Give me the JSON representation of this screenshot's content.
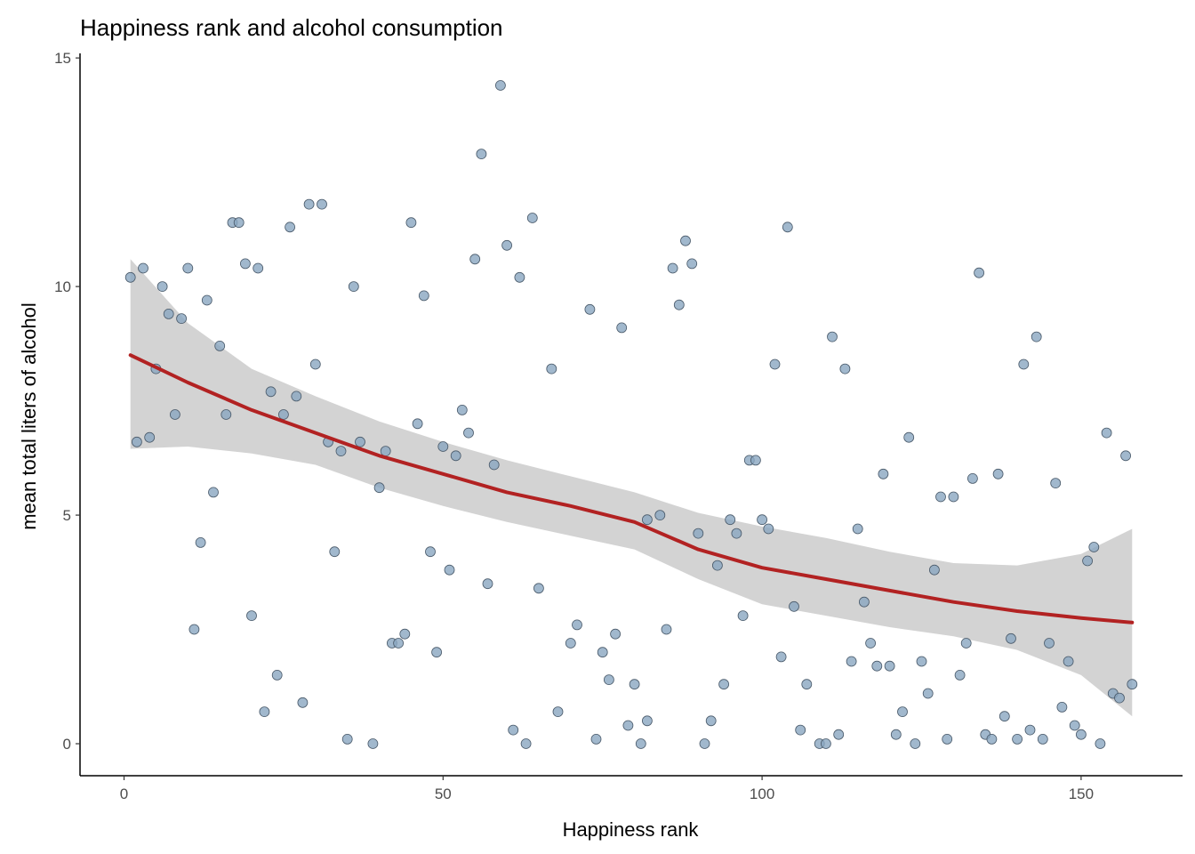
{
  "chart_data": {
    "type": "scatter",
    "title": "Happiness rank and alcohol consumption",
    "xlabel": "Happiness rank",
    "ylabel": "mean total liters of alcohol",
    "xlim": [
      -6.9,
      165.9
    ],
    "ylim": [
      -0.7,
      15.1
    ],
    "x_ticks": [
      0,
      50,
      100,
      150
    ],
    "y_ticks": [
      0,
      5,
      10,
      15
    ],
    "grid": false,
    "legend": "none",
    "colors": {
      "point_fill": "#8aa6c1",
      "point_stroke": "#4a5a6a",
      "smooth_line": "#b22222",
      "ribbon": "#d3d3d3",
      "axis": "#000000"
    },
    "points": [
      [
        1,
        10.2
      ],
      [
        2,
        6.6
      ],
      [
        3,
        10.4
      ],
      [
        4,
        6.7
      ],
      [
        5,
        8.2
      ],
      [
        6,
        10.0
      ],
      [
        7,
        9.4
      ],
      [
        8,
        7.2
      ],
      [
        9,
        9.3
      ],
      [
        10,
        10.4
      ],
      [
        11,
        2.5
      ],
      [
        12,
        4.4
      ],
      [
        13,
        9.7
      ],
      [
        14,
        5.5
      ],
      [
        15,
        8.7
      ],
      [
        16,
        7.2
      ],
      [
        17,
        11.4
      ],
      [
        18,
        11.4
      ],
      [
        19,
        10.5
      ],
      [
        20,
        2.8
      ],
      [
        21,
        10.4
      ],
      [
        22,
        0.7
      ],
      [
        23,
        7.7
      ],
      [
        24,
        1.5
      ],
      [
        25,
        7.2
      ],
      [
        26,
        11.3
      ],
      [
        27,
        7.6
      ],
      [
        28,
        0.9
      ],
      [
        29,
        11.8
      ],
      [
        30,
        8.3
      ],
      [
        31,
        11.8
      ],
      [
        32,
        6.6
      ],
      [
        33,
        4.2
      ],
      [
        34,
        6.4
      ],
      [
        35,
        0.1
      ],
      [
        36,
        10.0
      ],
      [
        37,
        6.6
      ],
      [
        39,
        0.0
      ],
      [
        40,
        5.6
      ],
      [
        41,
        6.4
      ],
      [
        42,
        2.2
      ],
      [
        43,
        2.2
      ],
      [
        44,
        2.4
      ],
      [
        45,
        11.4
      ],
      [
        46,
        7.0
      ],
      [
        47,
        9.8
      ],
      [
        48,
        4.2
      ],
      [
        49,
        2.0
      ],
      [
        50,
        6.5
      ],
      [
        51,
        3.8
      ],
      [
        52,
        6.3
      ],
      [
        53,
        7.3
      ],
      [
        54,
        6.8
      ],
      [
        55,
        10.6
      ],
      [
        56,
        12.9
      ],
      [
        57,
        3.5
      ],
      [
        58,
        6.1
      ],
      [
        59,
        14.4
      ],
      [
        60,
        10.9
      ],
      [
        61,
        0.3
      ],
      [
        62,
        10.2
      ],
      [
        63,
        0.0
      ],
      [
        64,
        11.5
      ],
      [
        65,
        3.4
      ],
      [
        67,
        8.2
      ],
      [
        68,
        0.7
      ],
      [
        70,
        2.2
      ],
      [
        71,
        2.6
      ],
      [
        73,
        9.5
      ],
      [
        74,
        0.1
      ],
      [
        75,
        2.0
      ],
      [
        76,
        1.4
      ],
      [
        77,
        2.4
      ],
      [
        78,
        9.1
      ],
      [
        79,
        0.4
      ],
      [
        80,
        1.3
      ],
      [
        81,
        0.0
      ],
      [
        82,
        4.9
      ],
      [
        82,
        0.5
      ],
      [
        84,
        5.0
      ],
      [
        85,
        2.5
      ],
      [
        86,
        10.4
      ],
      [
        87,
        9.6
      ],
      [
        88,
        11.0
      ],
      [
        89,
        10.5
      ],
      [
        90,
        4.6
      ],
      [
        91,
        0.0
      ],
      [
        92,
        0.5
      ],
      [
        93,
        3.9
      ],
      [
        94,
        1.3
      ],
      [
        95,
        4.9
      ],
      [
        96,
        4.6
      ],
      [
        97,
        2.8
      ],
      [
        98,
        6.2
      ],
      [
        99,
        6.2
      ],
      [
        100,
        4.9
      ],
      [
        101,
        4.7
      ],
      [
        102,
        8.3
      ],
      [
        103,
        1.9
      ],
      [
        104,
        11.3
      ],
      [
        105,
        3.0
      ],
      [
        106,
        0.3
      ],
      [
        107,
        1.3
      ],
      [
        109,
        0.0
      ],
      [
        110,
        0.0
      ],
      [
        111,
        8.9
      ],
      [
        112,
        0.2
      ],
      [
        113,
        8.2
      ],
      [
        114,
        1.8
      ],
      [
        115,
        4.7
      ],
      [
        116,
        3.1
      ],
      [
        117,
        2.2
      ],
      [
        118,
        1.7
      ],
      [
        119,
        5.9
      ],
      [
        120,
        1.7
      ],
      [
        121,
        0.2
      ],
      [
        122,
        0.7
      ],
      [
        123,
        6.7
      ],
      [
        124,
        0.0
      ],
      [
        125,
        1.8
      ],
      [
        126,
        1.1
      ],
      [
        127,
        3.8
      ],
      [
        128,
        5.4
      ],
      [
        129,
        0.1
      ],
      [
        130,
        5.4
      ],
      [
        131,
        1.5
      ],
      [
        132,
        2.2
      ],
      [
        133,
        5.8
      ],
      [
        134,
        10.3
      ],
      [
        135,
        0.2
      ],
      [
        136,
        0.1
      ],
      [
        137,
        5.9
      ],
      [
        138,
        0.6
      ],
      [
        139,
        2.3
      ],
      [
        140,
        0.1
      ],
      [
        141,
        8.3
      ],
      [
        142,
        0.3
      ],
      [
        143,
        8.9
      ],
      [
        144,
        0.1
      ],
      [
        145,
        2.2
      ],
      [
        146,
        5.7
      ],
      [
        147,
        0.8
      ],
      [
        148,
        1.8
      ],
      [
        149,
        0.4
      ],
      [
        150,
        0.2
      ],
      [
        151,
        4.0
      ],
      [
        152,
        4.3
      ],
      [
        153,
        0.0
      ],
      [
        154,
        6.8
      ],
      [
        155,
        1.1
      ],
      [
        156,
        1.0
      ],
      [
        157,
        6.3
      ],
      [
        158,
        1.3
      ]
    ],
    "smooth_fit": {
      "x": [
        1,
        10,
        20,
        30,
        40,
        50,
        60,
        70,
        80,
        90,
        100,
        110,
        120,
        130,
        140,
        150,
        158
      ],
      "y": [
        8.5,
        7.9,
        7.3,
        6.8,
        6.3,
        5.9,
        5.5,
        5.2,
        4.85,
        4.25,
        3.85,
        3.6,
        3.35,
        3.1,
        2.9,
        2.75,
        2.65
      ]
    },
    "confidence_band": {
      "x": [
        1,
        10,
        20,
        30,
        40,
        50,
        60,
        70,
        80,
        90,
        100,
        110,
        120,
        130,
        140,
        150,
        158
      ],
      "upper": [
        10.6,
        9.2,
        8.2,
        7.6,
        7.05,
        6.6,
        6.2,
        5.85,
        5.5,
        5.05,
        4.75,
        4.5,
        4.2,
        3.95,
        3.9,
        4.15,
        4.7
      ],
      "lower": [
        6.45,
        6.5,
        6.35,
        6.1,
        5.6,
        5.2,
        4.85,
        4.55,
        4.25,
        3.6,
        3.05,
        2.8,
        2.55,
        2.35,
        2.05,
        1.5,
        0.6
      ]
    }
  }
}
